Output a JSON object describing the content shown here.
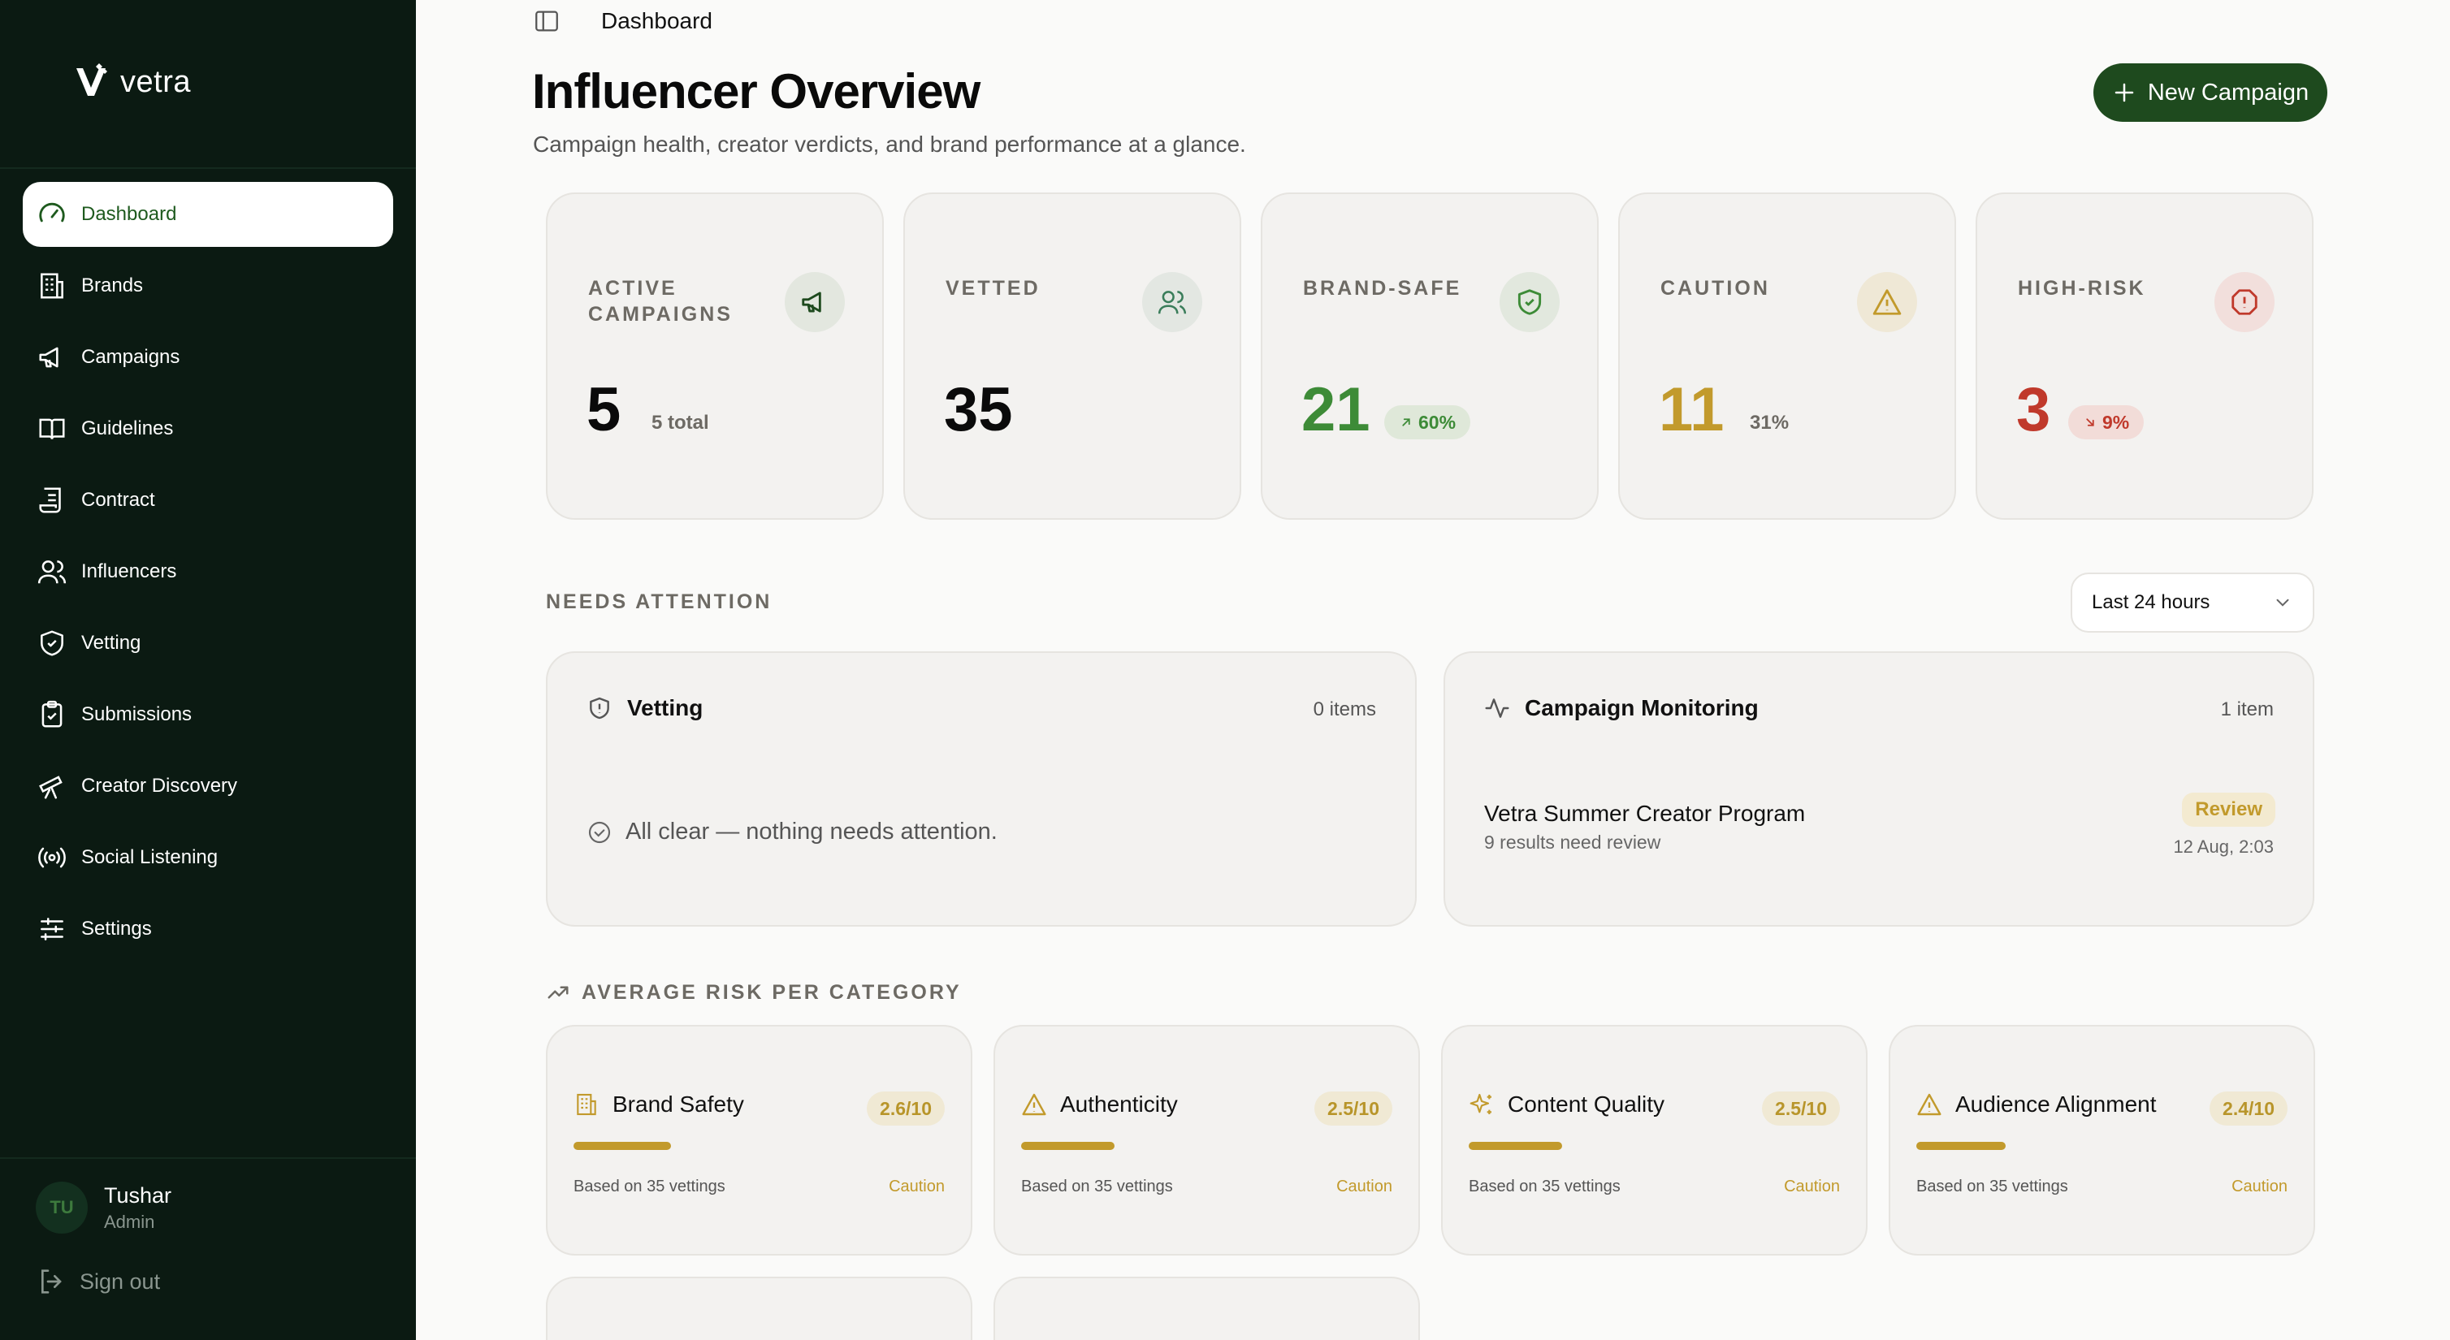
{
  "sidebar": {
    "logo": "vetra",
    "items": [
      {
        "label": "Dashboard",
        "icon": "gauge-icon",
        "active": true
      },
      {
        "label": "Brands",
        "icon": "building-icon"
      },
      {
        "label": "Campaigns",
        "icon": "megaphone-icon"
      },
      {
        "label": "Guidelines",
        "icon": "book-icon"
      },
      {
        "label": "Contract",
        "icon": "scroll-icon"
      },
      {
        "label": "Influencers",
        "icon": "users-icon"
      },
      {
        "label": "Vetting",
        "icon": "shield-check-icon"
      },
      {
        "label": "Submissions",
        "icon": "clipboard-check-icon"
      },
      {
        "label": "Creator Discovery",
        "icon": "telescope-icon"
      },
      {
        "label": "Social Listening",
        "icon": "radio-icon"
      },
      {
        "label": "Settings",
        "icon": "sliders-icon"
      }
    ],
    "user": {
      "initials": "TU",
      "name": "Tushar",
      "role": "Admin"
    },
    "signout": "Sign out"
  },
  "header": {
    "breadcrumb": "Dashboard",
    "title": "Influencer Overview",
    "subtitle": "Campaign health, creator verdicts, and brand performance at a glance.",
    "new_campaign": "New Campaign"
  },
  "stats": [
    {
      "label": "ACTIVE CAMPAIGNS",
      "value": "5",
      "extra": "5 total",
      "color": "#0a0a0a",
      "icon": "megaphone-icon"
    },
    {
      "label": "VETTED",
      "value": "35",
      "color": "#0a0a0a",
      "icon": "users-icon"
    },
    {
      "label": "BRAND-SAFE",
      "value": "21",
      "pill": "60%",
      "color": "#3d8b37",
      "icon": "shield-check-icon"
    },
    {
      "label": "CAUTION",
      "value": "11",
      "extra": "31%",
      "color": "#c29a2c",
      "icon": "warning-icon"
    },
    {
      "label": "HIGH-RISK",
      "value": "3",
      "pill": "9%",
      "color": "#c0392b",
      "icon": "alert-octagon-icon"
    }
  ],
  "attention": {
    "label": "NEEDS ATTENTION",
    "range": "Last 24 hours",
    "vetting": {
      "title": "Vetting",
      "count": "0 items",
      "empty": "All clear — nothing needs attention."
    },
    "monitoring": {
      "title": "Campaign Monitoring",
      "count": "1 item",
      "campaign": "Vetra Summer Creator Program",
      "detail": "9 results need review",
      "badge": "Review",
      "time": "12 Aug, 2:03"
    }
  },
  "risk": {
    "label": "AVERAGE RISK PER CATEGORY",
    "categories": [
      {
        "name": "Brand Safety",
        "score": "2.6/10",
        "level": 0.26,
        "foot": "Based on 35 vettings",
        "status": "Caution",
        "icon": "building-icon"
      },
      {
        "name": "Authenticity",
        "score": "2.5/10",
        "level": 0.25,
        "foot": "Based on 35 vettings",
        "status": "Caution",
        "icon": "warning-icon"
      },
      {
        "name": "Content Quality",
        "score": "2.5/10",
        "level": 0.25,
        "foot": "Based on 35 vettings",
        "status": "Caution",
        "icon": "sparkles-icon"
      },
      {
        "name": "Audience Alignment",
        "score": "2.4/10",
        "level": 0.24,
        "foot": "Based on 35 vettings",
        "status": "Caution",
        "icon": "warning-icon"
      }
    ]
  }
}
